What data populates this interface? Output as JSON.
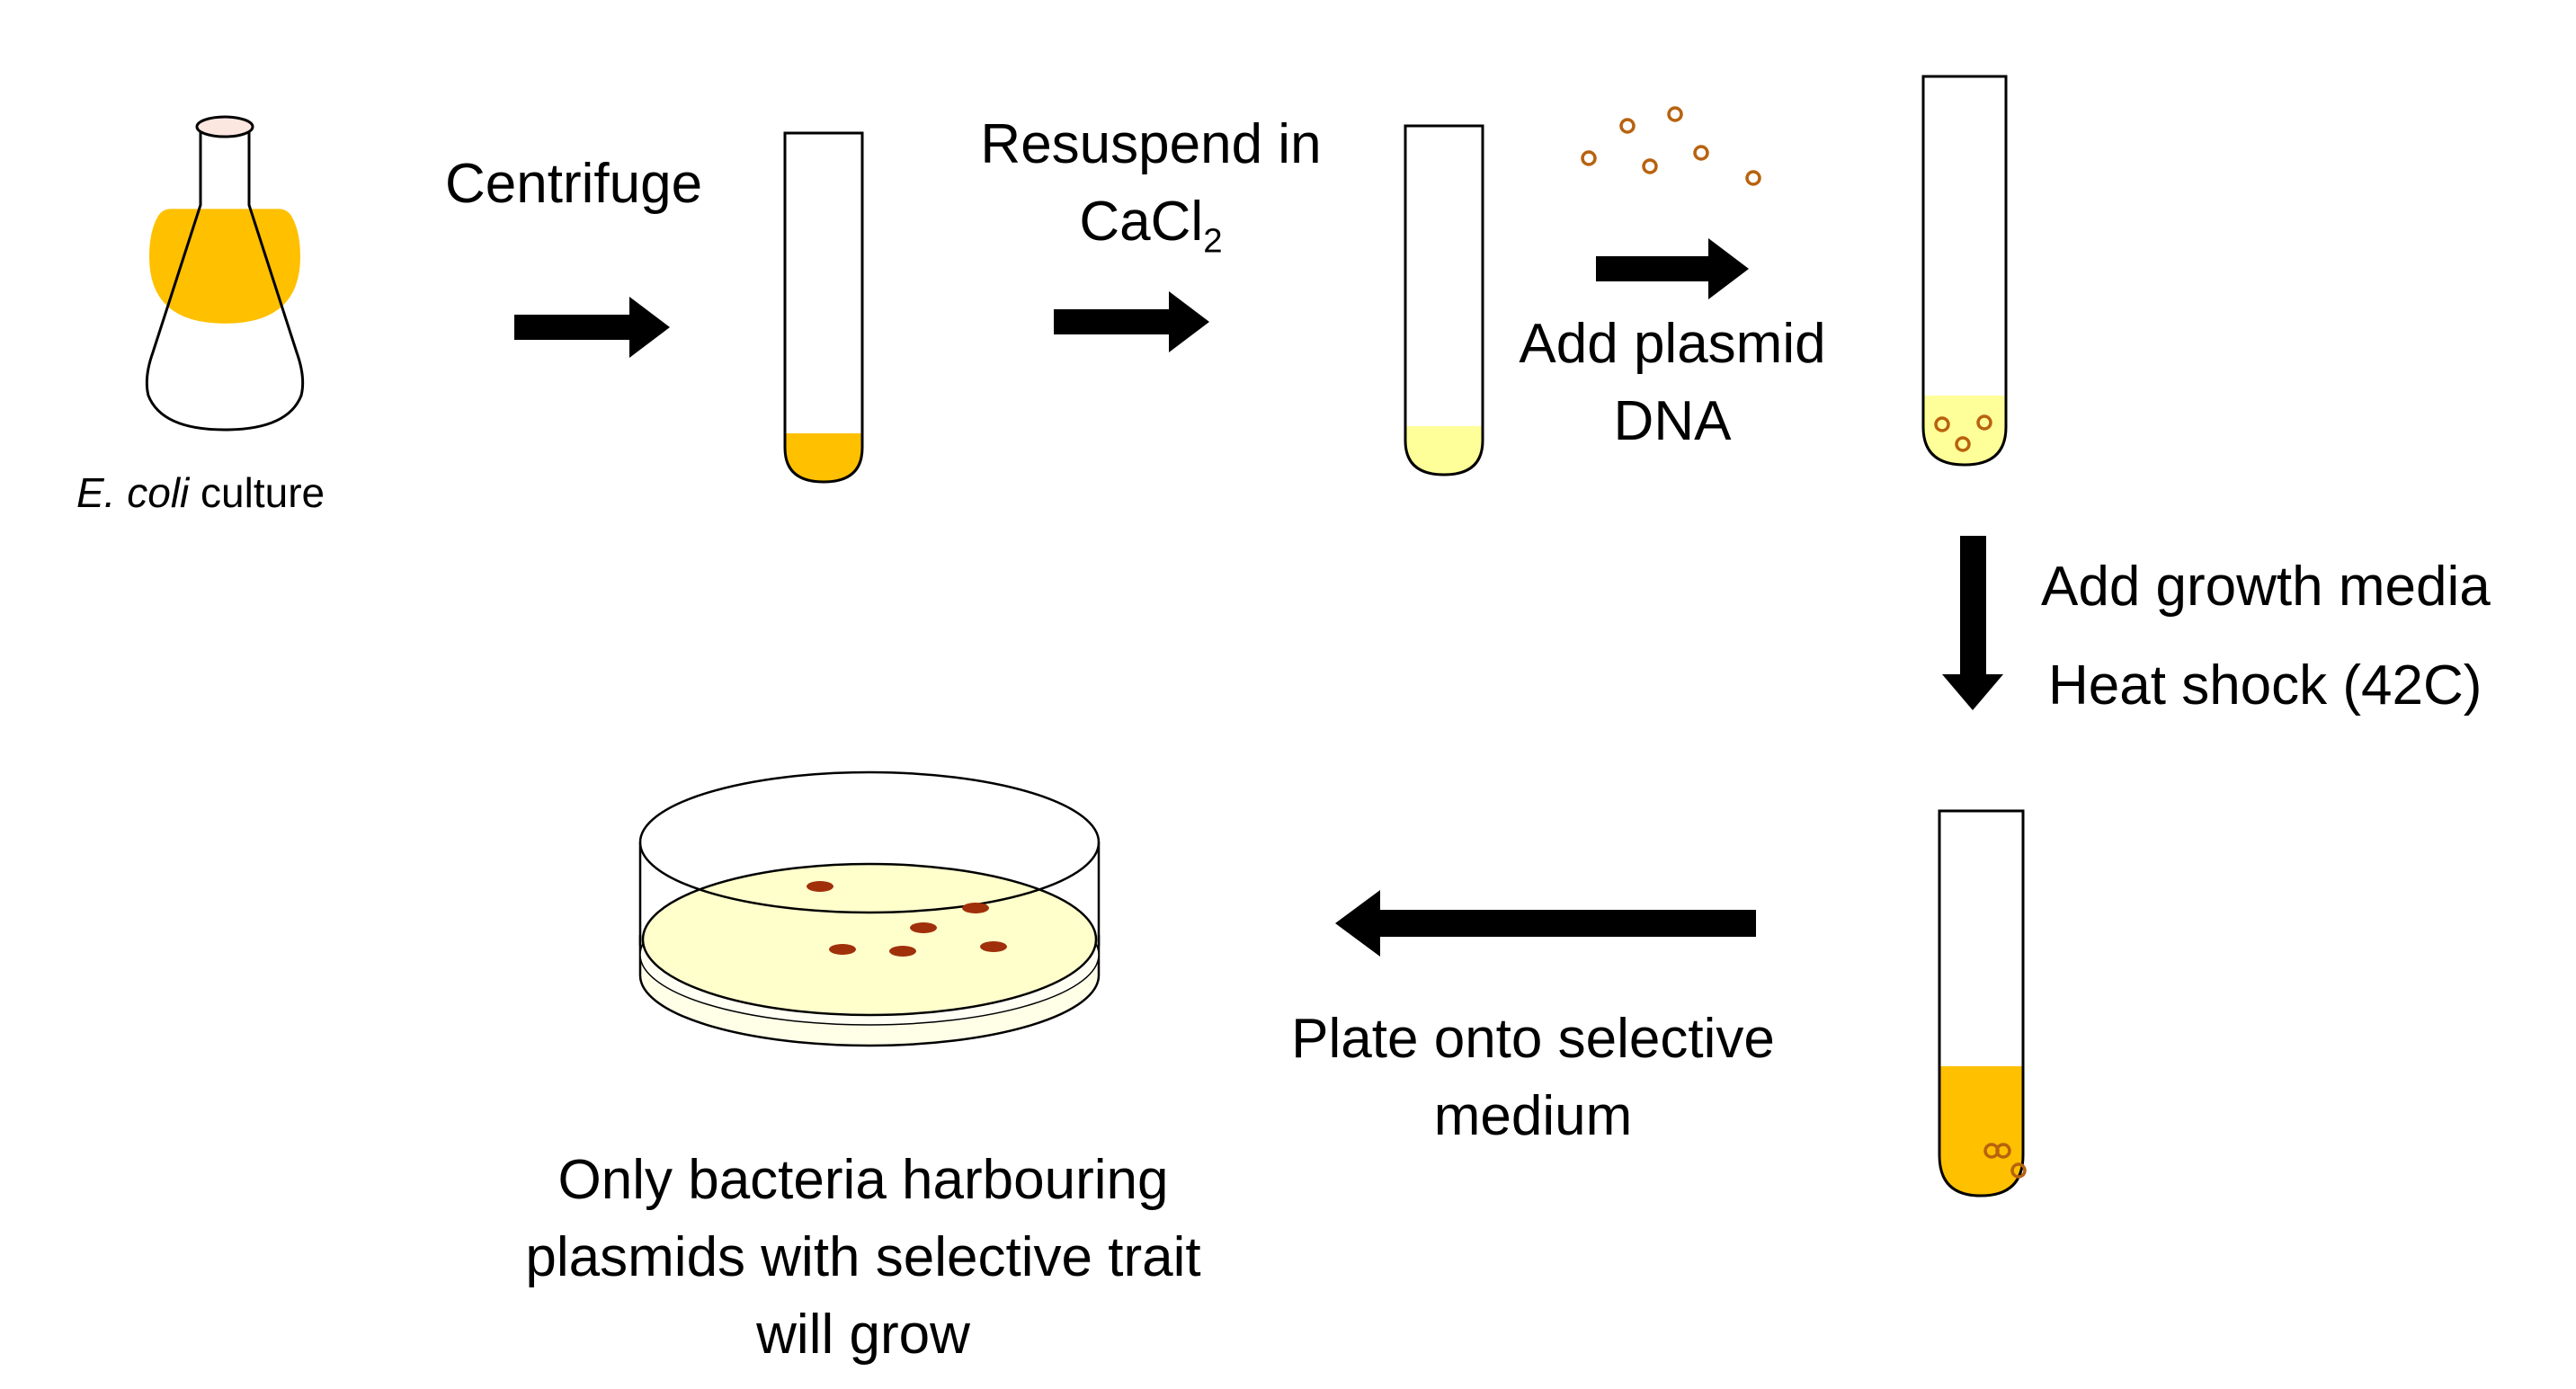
{
  "labels": {
    "culture_italic": "E. coli",
    "culture_rest": " culture",
    "centrifuge": "Centrifuge",
    "resuspend_line1": "Resuspend in",
    "resuspend_line2_main": "CaCl",
    "resuspend_line2_sub": "2",
    "add_plasmid_line1": "Add plasmid",
    "add_plasmid_line2": "DNA",
    "add_growth": "Add growth media",
    "heat_shock": "Heat shock (42C)",
    "plate_line1": "Plate onto selective",
    "plate_line2": "medium",
    "result_line1": "Only bacteria harbouring",
    "result_line2": "plasmids with selective trait",
    "result_line3": "will grow"
  },
  "colors": {
    "culture": "#FFC000",
    "resuspended": "#FFFF99",
    "plasmid": "#B8620E",
    "agar": "#FFFFCC",
    "colony": "#A0300A",
    "outline": "#000000"
  }
}
